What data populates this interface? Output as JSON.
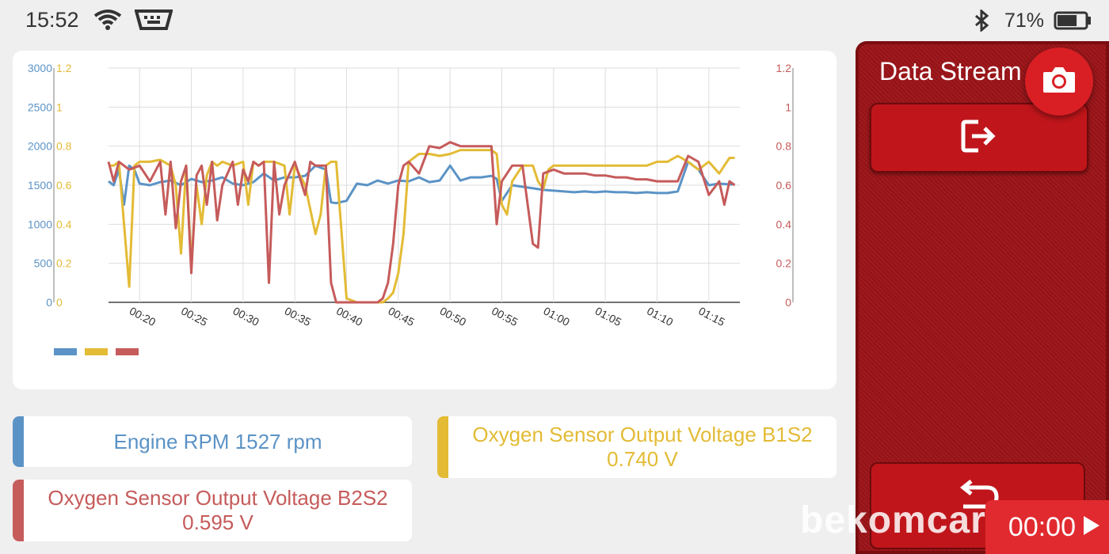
{
  "status_bar": {
    "time": "15:52",
    "battery_percent": "71%",
    "battery_level": 0.71,
    "icons": [
      "wifi-icon",
      "obd-dongle-icon",
      "bluetooth-icon",
      "battery-icon"
    ]
  },
  "colors": {
    "rpm": "#5b93c6",
    "b1s2": "#e3bb35",
    "b2s2": "#c65b5b",
    "panel": "#9c1418",
    "accent": "#d91f24"
  },
  "side_panel": {
    "title": "Data Stream",
    "buttons": [
      "camera-icon",
      "exit-icon",
      "back-icon"
    ]
  },
  "sensors": [
    {
      "name": "Engine RPM 1527 rpm",
      "value": ""
    },
    {
      "name": "Oxygen Sensor Output Voltage B1S2",
      "value": "0.740 V"
    },
    {
      "name": "Oxygen Sensor Output Voltage B2S2",
      "value": "0.595 V"
    }
  ],
  "overlay": {
    "watermark": "bekomcar.com",
    "record_time": "00:00"
  },
  "chart_data": {
    "type": "line",
    "x_tick_labels": [
      "00:20",
      "00:25",
      "00:30",
      "00:35",
      "00:40",
      "00:45",
      "00:50",
      "00:55",
      "01:00",
      "01:05",
      "01:10",
      "01:15"
    ],
    "x_range": [
      17,
      78
    ],
    "y_left_rpm": {
      "range": [
        0,
        3000
      ],
      "ticks": [
        "0",
        "500",
        "1000",
        "1500",
        "2000",
        "2500",
        "3000"
      ]
    },
    "y_left_voltage": {
      "range": [
        0,
        1.2
      ],
      "ticks": [
        "0",
        "0.2",
        "0.4",
        "0.6",
        "0.8",
        "1",
        "1.2"
      ]
    },
    "y_right_voltage": {
      "range": [
        0,
        1.2
      ],
      "ticks": [
        "0",
        "0.2",
        "0.4",
        "0.6",
        "0.8",
        "1",
        "1.2"
      ]
    },
    "grid": true,
    "legend": "bottom-left",
    "series": [
      {
        "axis": "rpm",
        "color": "#5b93c6",
        "x": [
          17,
          17.5,
          18,
          18.5,
          19,
          19.5,
          20,
          21,
          22,
          23,
          24,
          25,
          26,
          27,
          28,
          29,
          30,
          31,
          32,
          33,
          34,
          35,
          36,
          37,
          38,
          38.5,
          39,
          40,
          41,
          42,
          43,
          44,
          45,
          46,
          47,
          48,
          49,
          50,
          51,
          52,
          53,
          54,
          54.5,
          55,
          56,
          57,
          58,
          59,
          60,
          61,
          62,
          63,
          64,
          65,
          66,
          67,
          68,
          69,
          70,
          71,
          72,
          73,
          74,
          75,
          76,
          77,
          77.5
        ],
        "values": [
          1550,
          1500,
          1700,
          1250,
          1750,
          1700,
          1520,
          1500,
          1540,
          1560,
          1500,
          1580,
          1540,
          1560,
          1600,
          1520,
          1500,
          1540,
          1650,
          1560,
          1600,
          1600,
          1620,
          1750,
          1700,
          1280,
          1270,
          1300,
          1520,
          1500,
          1560,
          1520,
          1560,
          1550,
          1600,
          1540,
          1560,
          1750,
          1560,
          1600,
          1600,
          1620,
          1580,
          1300,
          1500,
          1480,
          1460,
          1440,
          1430,
          1420,
          1410,
          1420,
          1410,
          1420,
          1410,
          1410,
          1400,
          1410,
          1400,
          1400,
          1420,
          1800,
          1700,
          1500,
          1520,
          1510,
          1510
        ]
      },
      {
        "axis": "voltage",
        "color": "#e3bb35",
        "x": [
          17,
          17.5,
          18,
          19,
          19.5,
          20,
          21,
          22,
          23,
          23.5,
          24,
          24.5,
          25,
          25.5,
          26,
          26.5,
          27,
          27.5,
          28,
          29,
          30,
          30.5,
          31,
          31.5,
          32,
          33,
          34,
          34.5,
          35,
          36,
          37,
          37.5,
          38,
          38.5,
          39,
          40,
          41,
          42,
          43,
          43.5,
          44,
          44.5,
          45,
          45.5,
          46,
          47,
          48,
          49,
          50,
          51,
          52,
          53,
          54,
          54.5,
          55,
          55.5,
          56,
          57,
          58,
          58.5,
          59,
          59.5,
          60,
          61,
          62,
          63,
          64,
          65,
          66,
          67,
          68,
          69,
          70,
          71,
          72,
          73,
          74,
          75,
          76,
          76.5,
          77,
          77.5
        ],
        "values": [
          0.7,
          0.7,
          0.72,
          0.08,
          0.7,
          0.72,
          0.72,
          0.73,
          0.7,
          0.6,
          0.25,
          0.7,
          0.2,
          0.6,
          0.4,
          0.65,
          0.72,
          0.7,
          0.72,
          0.7,
          0.72,
          0.5,
          0.72,
          0.7,
          0.72,
          0.72,
          0.7,
          0.45,
          0.7,
          0.6,
          0.35,
          0.45,
          0.7,
          0.72,
          0.72,
          0.02,
          0.0,
          0.0,
          0.0,
          0.0,
          0.02,
          0.05,
          0.15,
          0.35,
          0.72,
          0.76,
          0.76,
          0.75,
          0.76,
          0.78,
          0.78,
          0.78,
          0.78,
          0.76,
          0.5,
          0.45,
          0.62,
          0.7,
          0.7,
          0.62,
          0.58,
          0.68,
          0.7,
          0.7,
          0.7,
          0.7,
          0.7,
          0.7,
          0.7,
          0.7,
          0.7,
          0.7,
          0.72,
          0.72,
          0.75,
          0.72,
          0.68,
          0.72,
          0.66,
          0.7,
          0.74,
          0.74
        ]
      },
      {
        "axis": "voltage",
        "color": "#c65b5b",
        "x": [
          17,
          17.5,
          18,
          18.5,
          19,
          20,
          21,
          22,
          22.5,
          23,
          23.5,
          24,
          24.5,
          25,
          25.5,
          26,
          26.5,
          27,
          27.5,
          28,
          29,
          29.5,
          30,
          30.5,
          31,
          31.5,
          32,
          32.5,
          33,
          33.5,
          34,
          35,
          36,
          36.5,
          37,
          38,
          38.5,
          39,
          39.5,
          40,
          41,
          42,
          43,
          43.5,
          44,
          44.5,
          45,
          45.5,
          46,
          47,
          48,
          49,
          50,
          51,
          52,
          53,
          54,
          54.5,
          55,
          56,
          57,
          58,
          58.5,
          59,
          60,
          61,
          62,
          63,
          64,
          65,
          66,
          67,
          68,
          69,
          70,
          71,
          72,
          73,
          74,
          75,
          76,
          76.5,
          77,
          77.5
        ],
        "values": [
          0.72,
          0.62,
          0.72,
          0.7,
          0.68,
          0.7,
          0.62,
          0.72,
          0.45,
          0.72,
          0.38,
          0.62,
          0.7,
          0.15,
          0.65,
          0.7,
          0.5,
          0.72,
          0.42,
          0.6,
          0.72,
          0.5,
          0.68,
          0.62,
          0.72,
          0.7,
          0.72,
          0.1,
          0.72,
          0.45,
          0.6,
          0.72,
          0.55,
          0.72,
          0.7,
          0.7,
          0.1,
          0.0,
          0.0,
          0.0,
          0.0,
          0.0,
          0.0,
          0.02,
          0.1,
          0.3,
          0.6,
          0.7,
          0.72,
          0.66,
          0.8,
          0.79,
          0.82,
          0.8,
          0.8,
          0.8,
          0.8,
          0.4,
          0.62,
          0.7,
          0.7,
          0.3,
          0.28,
          0.66,
          0.68,
          0.66,
          0.66,
          0.66,
          0.65,
          0.65,
          0.64,
          0.64,
          0.63,
          0.63,
          0.62,
          0.62,
          0.62,
          0.75,
          0.72,
          0.55,
          0.62,
          0.5,
          0.62,
          0.6
        ]
      }
    ]
  }
}
